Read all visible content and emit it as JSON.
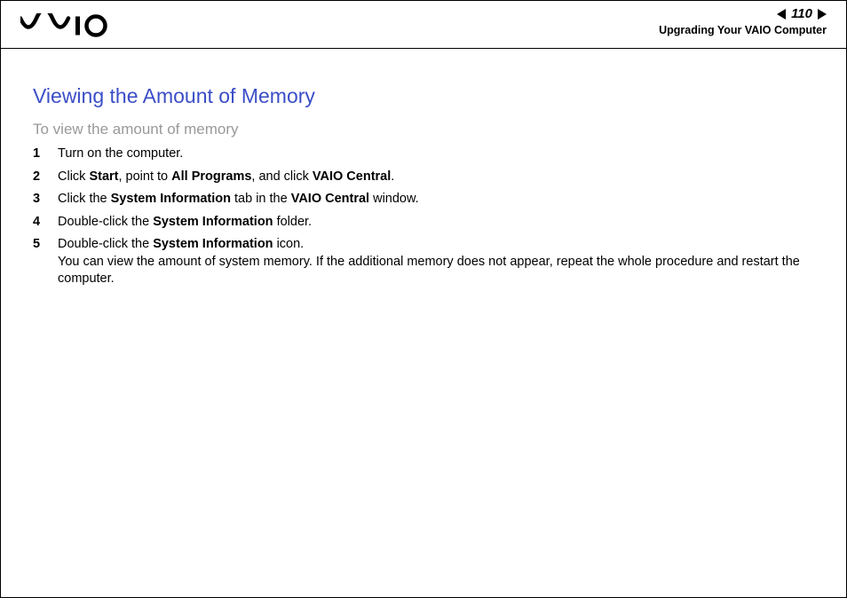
{
  "header": {
    "page_number": "110",
    "section_label": "Upgrading Your VAIO Computer"
  },
  "content": {
    "title": "Viewing the Amount of Memory",
    "subtitle": "To view the amount of memory",
    "steps": [
      {
        "num": "1",
        "segments": [
          {
            "t": "Turn on the computer.",
            "b": false
          }
        ]
      },
      {
        "num": "2",
        "segments": [
          {
            "t": "Click ",
            "b": false
          },
          {
            "t": "Start",
            "b": true
          },
          {
            "t": ", point to ",
            "b": false
          },
          {
            "t": "All Programs",
            "b": true
          },
          {
            "t": ", and click ",
            "b": false
          },
          {
            "t": "VAIO Central",
            "b": true
          },
          {
            "t": ".",
            "b": false
          }
        ]
      },
      {
        "num": "3",
        "segments": [
          {
            "t": "Click the ",
            "b": false
          },
          {
            "t": "System Information",
            "b": true
          },
          {
            "t": " tab in the ",
            "b": false
          },
          {
            "t": "VAIO Central",
            "b": true
          },
          {
            "t": " window.",
            "b": false
          }
        ]
      },
      {
        "num": "4",
        "segments": [
          {
            "t": "Double-click the ",
            "b": false
          },
          {
            "t": "System Information",
            "b": true
          },
          {
            "t": " folder.",
            "b": false
          }
        ]
      },
      {
        "num": "5",
        "segments": [
          {
            "t": "Double-click the ",
            "b": false
          },
          {
            "t": "System Information",
            "b": true
          },
          {
            "t": " icon.\nYou can view the amount of system memory. If the additional memory does not appear, repeat the whole procedure and restart the computer.",
            "b": false
          }
        ]
      }
    ]
  },
  "colors": {
    "title_color": "#3b4ec7",
    "subtitle_color": "#999999",
    "text_color": "#000000",
    "border_color": "#000000",
    "background": "#ffffff"
  },
  "typography": {
    "title_fontsize": 23,
    "subtitle_fontsize": 17,
    "body_fontsize": 14.5,
    "pagenum_fontsize": 15,
    "section_label_fontsize": 12.5,
    "font_family": "Arial"
  }
}
